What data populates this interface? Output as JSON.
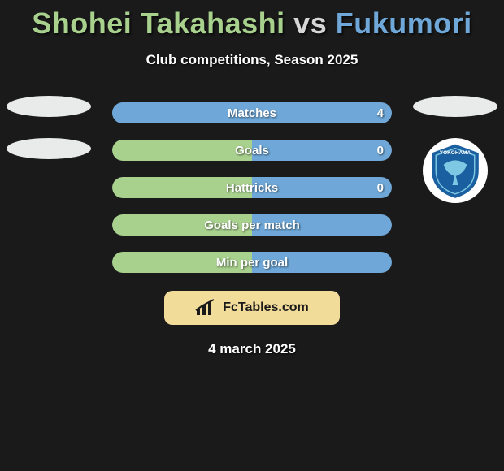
{
  "colors": {
    "background": "#1a1a1a",
    "p1": "#a9d18e",
    "p2": "#6fa8d8",
    "footer_bg": "#f2dc9a",
    "white": "#ffffff"
  },
  "title": {
    "player1": "Shohei Takahashi",
    "vs": "vs",
    "player2": "Fukumori"
  },
  "subtitle": "Club competitions, Season 2025",
  "left_side": {
    "avatar_present": true,
    "club_present": true
  },
  "right_side": {
    "avatar_present": true,
    "club_name": "Yokohama FC",
    "club_colors": {
      "primary": "#1a5fa0",
      "accent": "#7ec8e3"
    }
  },
  "bars": [
    {
      "label": "Matches",
      "left_value": "",
      "right_value": "4",
      "left_pct": 0,
      "right_pct": 100,
      "left_color": "#a9d18e",
      "right_color": "#6fa8d8"
    },
    {
      "label": "Goals",
      "left_value": "",
      "right_value": "0",
      "left_pct": 50,
      "right_pct": 50,
      "left_color": "#a9d18e",
      "right_color": "#6fa8d8"
    },
    {
      "label": "Hattricks",
      "left_value": "",
      "right_value": "0",
      "left_pct": 50,
      "right_pct": 50,
      "left_color": "#a9d18e",
      "right_color": "#6fa8d8"
    },
    {
      "label": "Goals per match",
      "left_value": "",
      "right_value": "",
      "left_pct": 50,
      "right_pct": 50,
      "left_color": "#a9d18e",
      "right_color": "#6fa8d8"
    },
    {
      "label": "Min per goal",
      "left_value": "",
      "right_value": "",
      "left_pct": 50,
      "right_pct": 50,
      "left_color": "#a9d18e",
      "right_color": "#6fa8d8"
    }
  ],
  "footer": {
    "brand": "FcTables.com"
  },
  "date": "4 march 2025"
}
